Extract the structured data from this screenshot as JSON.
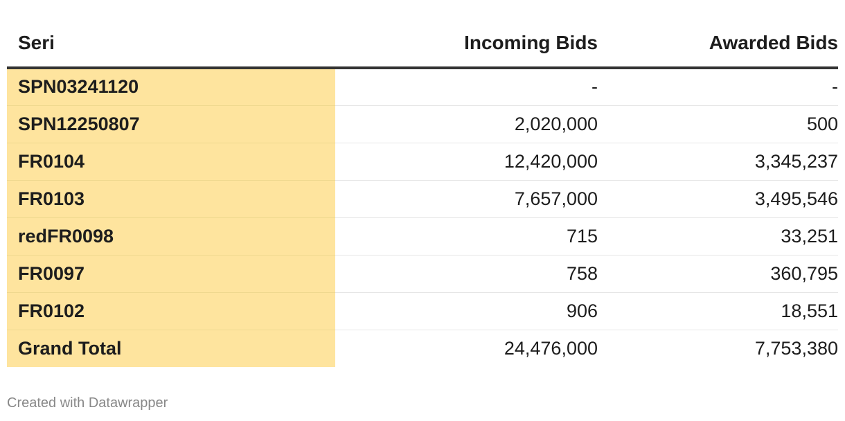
{
  "chart_data": {
    "type": "table",
    "columns": [
      "Seri",
      "Incoming Bids",
      "Awarded Bids"
    ],
    "rows": [
      {
        "seri": "SPN03241120",
        "incoming": "-",
        "awarded": "-"
      },
      {
        "seri": "SPN12250807",
        "incoming": "2,020,000",
        "awarded": "500"
      },
      {
        "seri": "FR0104",
        "incoming": "12,420,000",
        "awarded": "3,345,237"
      },
      {
        "seri": "FR0103",
        "incoming": "7,657,000",
        "awarded": "3,495,546"
      },
      {
        "seri": "redFR0098",
        "incoming": "715",
        "awarded": "33,251"
      },
      {
        "seri": "FR0097",
        "incoming": "758",
        "awarded": "360,795"
      },
      {
        "seri": "FR0102",
        "incoming": "906",
        "awarded": "18,551"
      },
      {
        "seri": "Grand Total",
        "incoming": "24,476,000",
        "awarded": "7,753,380"
      }
    ],
    "highlight_color": "#fee49e",
    "header_rule_color": "#333333"
  },
  "footer": {
    "credit": "Created with Datawrapper"
  }
}
